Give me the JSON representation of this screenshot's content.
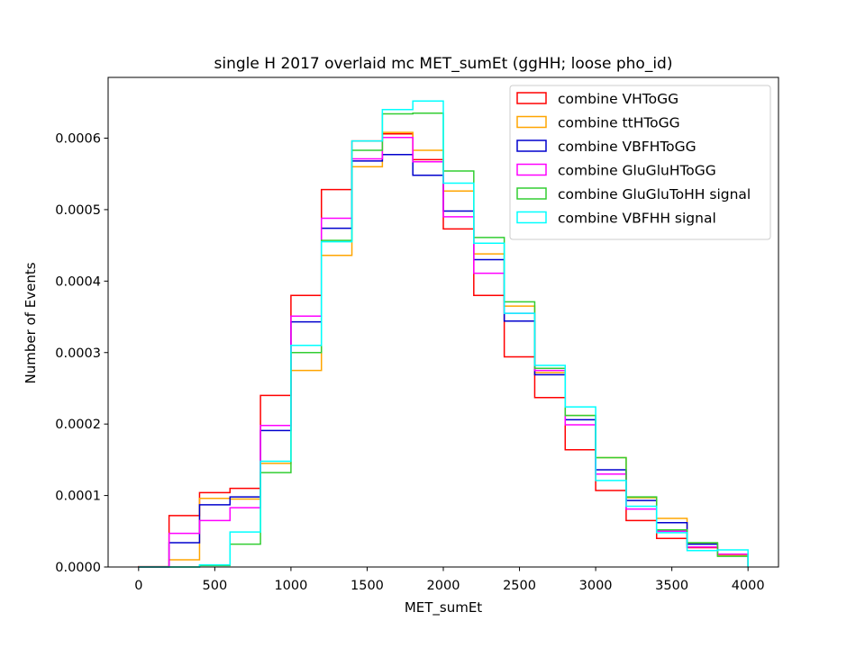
{
  "chart_data": {
    "type": "line",
    "title": "single H 2017 overlaid mc MET_sumEt (ggHH; loose pho_id)",
    "xlabel": "MET_sumEt",
    "ylabel": "Number of Events",
    "xlim": [
      -200,
      4200
    ],
    "ylim": [
      0,
      0.000685
    ],
    "xticks": [
      0,
      500,
      1000,
      1500,
      2000,
      2500,
      3000,
      3500,
      4000
    ],
    "xtick_labels": [
      "0",
      "500",
      "1000",
      "1500",
      "2000",
      "2500",
      "3000",
      "3500",
      "4000"
    ],
    "yticks": [
      0,
      0.0001,
      0.0002,
      0.0003,
      0.0004,
      0.0005,
      0.0006
    ],
    "ytick_labels": [
      "0.0000",
      "0.0001",
      "0.0002",
      "0.0003",
      "0.0004",
      "0.0005",
      "0.0006"
    ],
    "grid": false,
    "legend_position": "top-right",
    "bin_edges": [
      0,
      200,
      400,
      600,
      800,
      1000,
      1200,
      1400,
      1600,
      1800,
      2000,
      2200,
      2400,
      2600,
      2800,
      3000,
      3200,
      3400,
      3600,
      3800,
      4000
    ],
    "series": [
      {
        "name": "combine VHToGG",
        "color": "#ff0000",
        "values": [
          5e-07,
          7.2e-05,
          0.000104,
          0.00011,
          0.00024,
          0.00038,
          0.000528,
          0.000596,
          0.000606,
          0.00057,
          0.000473,
          0.00038,
          0.000294,
          0.000237,
          0.000164,
          0.000107,
          6.5e-05,
          4e-05,
          2.7e-05,
          1.6e-05
        ]
      },
      {
        "name": "combine ttHToGG",
        "color": "#ffa500",
        "values": [
          0.0,
          1e-05,
          9.6e-05,
          9.5e-05,
          0.000145,
          0.000275,
          0.000436,
          0.00056,
          0.000608,
          0.000583,
          0.000526,
          0.000438,
          0.000365,
          0.000272,
          0.000212,
          0.000153,
          9.7e-05,
          6.8e-05,
          3.3e-05,
          1.6e-05
        ]
      },
      {
        "name": "combine VBFHToGG",
        "color": "#0000cd",
        "values": [
          0.0,
          3.4e-05,
          8.7e-05,
          9.8e-05,
          0.000191,
          0.000343,
          0.000474,
          0.000568,
          0.000577,
          0.000548,
          0.000498,
          0.00043,
          0.000344,
          0.000269,
          0.000206,
          0.000136,
          9.3e-05,
          6.2e-05,
          3.2e-05,
          1.8e-05
        ]
      },
      {
        "name": "combine GluGluHToGG",
        "color": "#ff00ff",
        "values": [
          0.0,
          4.7e-05,
          6.5e-05,
          8.3e-05,
          0.000198,
          0.000351,
          0.000488,
          0.000571,
          0.000601,
          0.000567,
          0.00049,
          0.000411,
          0.000355,
          0.000275,
          0.000199,
          0.00013,
          8.1e-05,
          5e-05,
          2.8e-05,
          1.8e-05
        ]
      },
      {
        "name": "combine GluGluToHH signal",
        "color": "#32cd32",
        "values": [
          0.0,
          0.0,
          2e-06,
          3.2e-05,
          0.000132,
          0.0003,
          0.000457,
          0.000583,
          0.000634,
          0.000635,
          0.000554,
          0.000461,
          0.000371,
          0.000278,
          0.000212,
          0.000153,
          9.8e-05,
          5.2e-05,
          3.4e-05,
          1.5e-05
        ]
      },
      {
        "name": "combine VBFHH signal",
        "color": "#00ffff",
        "values": [
          0.0,
          0.0,
          3e-06,
          4.9e-05,
          0.000148,
          0.00031,
          0.000455,
          0.000596,
          0.00064,
          0.000652,
          0.000537,
          0.000453,
          0.000355,
          0.000282,
          0.000224,
          0.000121,
          8.5e-05,
          4.8e-05,
          2.3e-05,
          2.4e-05
        ]
      }
    ]
  }
}
